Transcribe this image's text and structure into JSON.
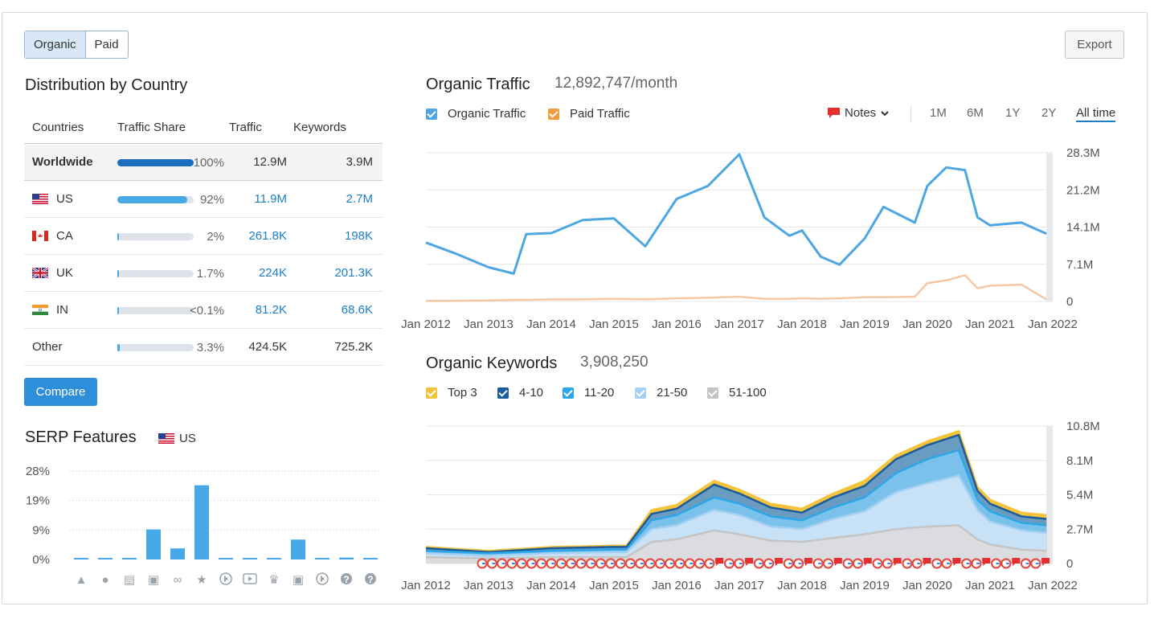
{
  "toggle": {
    "organic": "Organic",
    "paid": "Paid"
  },
  "export_label": "Export",
  "distribution": {
    "title": "Distribution by Country",
    "columns": [
      "Countries",
      "Traffic Share",
      "Traffic",
      "Keywords"
    ],
    "rows": [
      {
        "country": "Worldwide",
        "share": "100%",
        "share_value": 100,
        "traffic": "12.9M",
        "keywords": "3.9M",
        "flag": "",
        "bar_color": "#1a6fbf"
      },
      {
        "country": "US",
        "share": "92%",
        "share_value": 92,
        "traffic": "11.9M",
        "keywords": "2.7M",
        "flag": "us-flag-icon",
        "bar_color": "#47a8e8"
      },
      {
        "country": "CA",
        "share": "2%",
        "share_value": 2,
        "traffic": "261.8K",
        "keywords": "198K",
        "flag": "ca-flag-icon",
        "bar_color": "#47a8e8"
      },
      {
        "country": "UK",
        "share": "1.7%",
        "share_value": 1.7,
        "traffic": "224K",
        "keywords": "201.3K",
        "flag": "uk-flag-icon",
        "bar_color": "#47a8e8"
      },
      {
        "country": "IN",
        "share": "<0.1%",
        "share_value": 0.1,
        "traffic": "81.2K",
        "keywords": "68.6K",
        "flag": "in-flag-icon",
        "bar_color": "#47a8e8"
      },
      {
        "country": "Other",
        "share": "3.3%",
        "share_value": 3.3,
        "traffic": "424.5K",
        "keywords": "725.2K",
        "flag": "",
        "bar_color": "#47a8e8"
      }
    ],
    "compare_label": "Compare"
  },
  "serp": {
    "title": "SERP Features",
    "region": "US",
    "y_ticks": [
      "28%",
      "19%",
      "9%",
      "0%"
    ],
    "icons": [
      "graduation-cap-icon",
      "map-pin-icon",
      "article-icon",
      "image-icon",
      "link-icon",
      "star-icon",
      "video-play-icon",
      "youtube-icon",
      "crown-icon",
      "image-pack-icon",
      "video-icon",
      "faq-icon",
      "question-icon"
    ]
  },
  "organic_traffic": {
    "title": "Organic Traffic",
    "value": "12,892,747/month",
    "legend": [
      "Organic Traffic",
      "Paid Traffic"
    ],
    "notes_label": "Notes",
    "periods": [
      "1M",
      "6M",
      "1Y",
      "2Y",
      "All time"
    ],
    "active_period": "All time"
  },
  "organic_keywords": {
    "title": "Organic Keywords",
    "value": "3,908,250",
    "legend": [
      "Top 3",
      "4-10",
      "11-20",
      "21-50",
      "51-100"
    ]
  },
  "colors": {
    "organic": "#4ea6e2",
    "paid": "#f7c7a2",
    "top3": "#f5c33b",
    "k410": "#1a5c9c",
    "k1120": "#2ba7e8",
    "k2150": "#a7d1f3",
    "k51100": "#c4c4c4",
    "accent": "#2d8ed9"
  },
  "chart_data": [
    {
      "type": "bar",
      "title": "SERP Features",
      "categories": [
        "graduation-cap-icon",
        "map-pin-icon",
        "article-icon",
        "image-icon",
        "link-icon",
        "star-icon",
        "video-play-icon",
        "youtube-icon",
        "crown-icon",
        "image-pack-icon",
        "video-icon",
        "faq-icon",
        "question-icon"
      ],
      "values": [
        0.5,
        0.5,
        0.5,
        9.5,
        3.5,
        23.5,
        0.5,
        0.5,
        0.5,
        6.3,
        0.5,
        0.6,
        0.5
      ],
      "ylim": [
        0,
        28
      ],
      "y_ticks": [
        "28%",
        "19%",
        "9%",
        "0%"
      ],
      "grid": true
    },
    {
      "type": "line",
      "title": "Organic Traffic",
      "x_ticks": [
        "Jan 2012",
        "Jan 2013",
        "Jan 2014",
        "Jan 2015",
        "Jan 2016",
        "Jan 2017",
        "Jan 2018",
        "Jan 2019",
        "Jan 2020",
        "Jan 2021",
        "Jan 2022"
      ],
      "y_ticks": [
        "28.3M",
        "21.2M",
        "14.1M",
        "7.1M",
        "0"
      ],
      "ylim": [
        0,
        28.3
      ],
      "x": [
        2012.0,
        2012.5,
        2013.0,
        2013.4,
        2013.6,
        2014.0,
        2014.5,
        2015.0,
        2015.5,
        2016.0,
        2016.5,
        2017.0,
        2017.4,
        2017.8,
        2018.0,
        2018.3,
        2018.6,
        2019.0,
        2019.3,
        2019.8,
        2020.0,
        2020.3,
        2020.6,
        2020.8,
        2021.0,
        2021.5,
        2021.9
      ],
      "series": [
        {
          "name": "Organic Traffic",
          "values": [
            11.2,
            9.0,
            6.5,
            5.3,
            12.8,
            13.0,
            15.5,
            15.8,
            10.5,
            19.5,
            22.0,
            28.0,
            16.0,
            12.5,
            13.5,
            8.5,
            7.0,
            12.0,
            18.0,
            15.0,
            22.0,
            25.5,
            25.0,
            16.0,
            14.5,
            15.0,
            12.9
          ]
        },
        {
          "name": "Paid Traffic",
          "values": [
            0.1,
            0.1,
            0.2,
            0.3,
            0.3,
            0.4,
            0.4,
            0.5,
            0.4,
            0.6,
            0.7,
            0.9,
            0.5,
            0.5,
            0.6,
            0.5,
            0.6,
            0.8,
            0.8,
            0.9,
            3.5,
            4.0,
            5.0,
            2.5,
            3.0,
            3.2,
            0.4
          ]
        }
      ],
      "grid": true
    },
    {
      "type": "area",
      "title": "Organic Keywords",
      "x_ticks": [
        "Jan 2012",
        "Jan 2013",
        "Jan 2014",
        "Jan 2015",
        "Jan 2016",
        "Jan 2017",
        "Jan 2018",
        "Jan 2019",
        "Jan 2020",
        "Jan 2021",
        "Jan 2022"
      ],
      "y_ticks": [
        "10.8M",
        "8.1M",
        "5.4M",
        "2.7M",
        "0"
      ],
      "ylim": [
        0,
        10.8
      ],
      "x": [
        2012.0,
        2013.0,
        2014.0,
        2015.0,
        2015.2,
        2015.6,
        2016.0,
        2016.6,
        2017.0,
        2017.5,
        2018.0,
        2018.5,
        2019.0,
        2019.5,
        2020.0,
        2020.5,
        2020.8,
        2021.0,
        2021.5,
        2021.9
      ],
      "series": [
        {
          "name": "Top 3",
          "values": [
            1.3,
            1.0,
            1.3,
            1.4,
            1.4,
            4.2,
            4.6,
            6.5,
            5.8,
            4.7,
            4.3,
            5.5,
            6.5,
            8.5,
            9.6,
            10.4,
            6.0,
            5.0,
            4.0,
            3.8
          ]
        },
        {
          "name": "4-10",
          "values": [
            1.2,
            0.9,
            1.2,
            1.3,
            1.3,
            3.9,
            4.3,
            6.2,
            5.5,
            4.4,
            4.0,
            5.2,
            6.1,
            8.2,
            9.3,
            10.1,
            5.7,
            4.7,
            3.7,
            3.5
          ]
        },
        {
          "name": "11-20",
          "values": [
            1.0,
            0.8,
            1.0,
            1.1,
            1.1,
            3.4,
            3.8,
            5.2,
            4.7,
            3.7,
            3.4,
            4.4,
            5.2,
            7.1,
            8.2,
            8.9,
            5.0,
            4.1,
            3.2,
            3.0
          ]
        },
        {
          "name": "21-50",
          "values": [
            0.8,
            0.6,
            0.8,
            0.9,
            0.9,
            2.7,
            3.0,
            4.2,
            3.8,
            2.9,
            2.7,
            3.5,
            4.1,
            5.6,
            6.3,
            6.9,
            4.2,
            3.3,
            2.6,
            2.4
          ]
        },
        {
          "name": "51-100",
          "values": [
            0.5,
            0.4,
            0.5,
            0.5,
            0.5,
            1.7,
            1.9,
            2.6,
            2.3,
            1.8,
            1.7,
            2.0,
            2.3,
            2.7,
            2.9,
            3.0,
            1.9,
            1.5,
            1.1,
            1.0
          ]
        }
      ],
      "grid": true
    }
  ]
}
